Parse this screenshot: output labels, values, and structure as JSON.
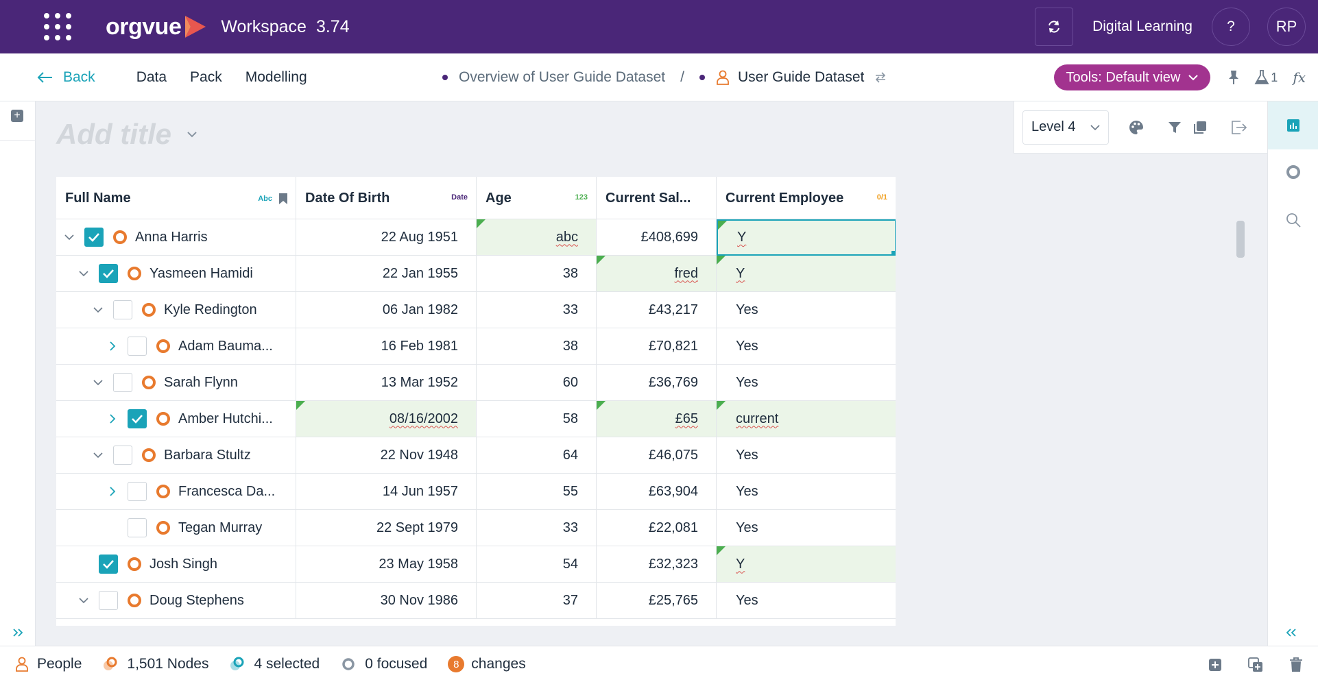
{
  "topbar": {
    "brand": "orgvue",
    "workspace_label": "Workspace",
    "version": "3.74",
    "org_name": "Digital Learning",
    "help_label": "?",
    "avatar_initials": "RP"
  },
  "nav": {
    "back_label": "Back",
    "items": [
      "Data",
      "Pack",
      "Modelling"
    ],
    "breadcrumb": [
      "Overview of User Guide Dataset",
      "User Guide Dataset"
    ],
    "separator": "/",
    "tools_label": "Tools: Default view",
    "flask_count": "1",
    "fx_label": "fx"
  },
  "view": {
    "title_placeholder": "Add title",
    "level_label": "Level 4"
  },
  "table": {
    "columns": [
      {
        "label": "Full Name",
        "type": "Abc"
      },
      {
        "label": "Date Of Birth",
        "type": "Date"
      },
      {
        "label": "Age",
        "type": "123"
      },
      {
        "label": "Current Sal...",
        "type": ""
      },
      {
        "label": "Current Employee",
        "type": "0/1"
      }
    ],
    "rows": [
      {
        "name": "Anna Harris",
        "dob": "22 Aug 1951",
        "age": "abc",
        "salary": "£408,699",
        "employee": "Y"
      },
      {
        "name": "Yasmeen Hamidi",
        "dob": "22 Jan 1955",
        "age": "38",
        "salary": "fred",
        "employee": "Y"
      },
      {
        "name": "Kyle Redington",
        "dob": "06 Jan 1982",
        "age": "33",
        "salary": "£43,217",
        "employee": "Yes"
      },
      {
        "name": "Adam Bauma...",
        "dob": "16 Feb 1981",
        "age": "38",
        "salary": "£70,821",
        "employee": "Yes"
      },
      {
        "name": "Sarah Flynn",
        "dob": "13 Mar 1952",
        "age": "60",
        "salary": "£36,769",
        "employee": "Yes"
      },
      {
        "name": "Amber Hutchi...",
        "dob": "08/16/2002",
        "age": "58",
        "salary": "£65",
        "employee": "current"
      },
      {
        "name": "Barbara Stultz",
        "dob": "22 Nov 1948",
        "age": "64",
        "salary": "£46,075",
        "employee": "Yes"
      },
      {
        "name": "Francesca Da...",
        "dob": "14 Jun 1957",
        "age": "55",
        "salary": "£63,904",
        "employee": "Yes"
      },
      {
        "name": "Tegan Murray",
        "dob": "22 Sept 1979",
        "age": "33",
        "salary": "£22,081",
        "employee": "Yes"
      },
      {
        "name": "Josh Singh",
        "dob": "23 May 1958",
        "age": "54",
        "salary": "£32,323",
        "employee": "Y"
      },
      {
        "name": "Doug Stephens",
        "dob": "30 Nov 1986",
        "age": "37",
        "salary": "£25,765",
        "employee": "Yes"
      }
    ]
  },
  "status": {
    "dataset": "People",
    "nodes": "1,501 Nodes",
    "selected": "4 selected",
    "focused": "0 focused",
    "changes_count": "8",
    "changes_label": "changes"
  },
  "colors": {
    "brand_purple": "#4a2678",
    "accent_teal": "#1aa3b8",
    "tools_magenta": "#a2338f",
    "node_orange": "#e87a2e",
    "changed_green": "#4bae4f"
  }
}
